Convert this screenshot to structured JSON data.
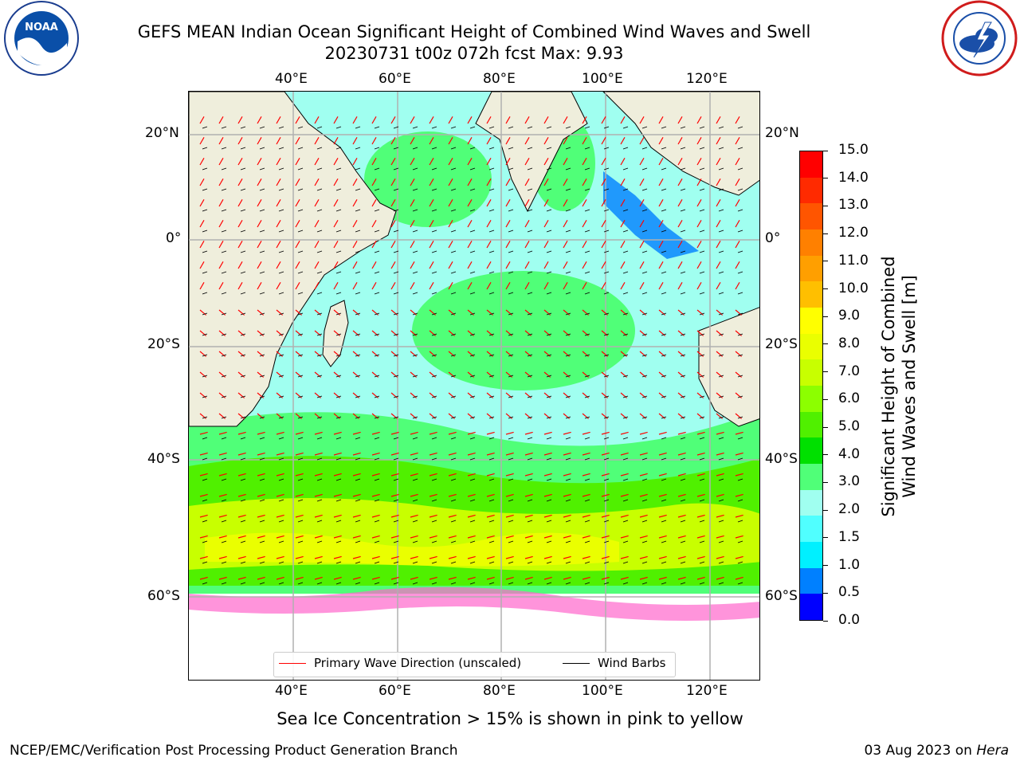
{
  "title_line1": "GEFS MEAN Indian Ocean Significant Height of Combined Wind Waves and Swell",
  "title_line2": "20230731 t00z 072h fcst   Max: 9.93",
  "logo_left_text": "NOAA",
  "logo_left_ring": "NATIONAL OCEANIC AND ATMOSPHERIC ADMINISTRATION · U.S. DEPARTMENT OF COMMERCE",
  "logo_right_ring": "NATIONAL WEATHER SERVICE",
  "lon_labels": [
    "40°E",
    "60°E",
    "80°E",
    "100°E",
    "120°E"
  ],
  "lat_labels": [
    "20°N",
    "0°",
    "20°S",
    "40°S",
    "60°S"
  ],
  "colorbar": {
    "title_line1": "Significant Height of Combined",
    "title_line2": "Wind Waves and Swell [m]",
    "ticks": [
      "15.0",
      "14.0",
      "13.0",
      "12.0",
      "11.0",
      "10.0",
      "9.0",
      "8.0",
      "7.0",
      "6.0",
      "5.0",
      "4.0",
      "3.0",
      "2.0",
      "1.5",
      "1.0",
      "0.5",
      "0.0"
    ],
    "colors_top_to_bottom": [
      "#ff0000",
      "#ff2a00",
      "#ff5500",
      "#ff8000",
      "#ff9f00",
      "#ffbf00",
      "#ffff00",
      "#eaff00",
      "#c8ff00",
      "#8cff00",
      "#50f000",
      "#00e000",
      "#50ff78",
      "#a0fff0",
      "#50ffff",
      "#00f0ff",
      "#0080ff",
      "#0000ff"
    ]
  },
  "legend": {
    "wave_label": "Primary Wave Direction (unscaled)",
    "wind_label": "Wind Barbs",
    "wave_color": "#ff0000",
    "wind_color": "#000000"
  },
  "caption": "Sea Ice Concentration > 15% is shown in pink to yellow",
  "footer_left": "NCEP/EMC/Verification Post Processing Product Generation Branch",
  "footer_date": "03 Aug 2023 on ",
  "footer_host": "Hera",
  "colors": {
    "land": "#efeedc",
    "ocean_low": "#a0fff0",
    "ocean_mid": "#50f000",
    "ocean_high": "#eaff00",
    "grid": "#b0b0b0"
  }
}
